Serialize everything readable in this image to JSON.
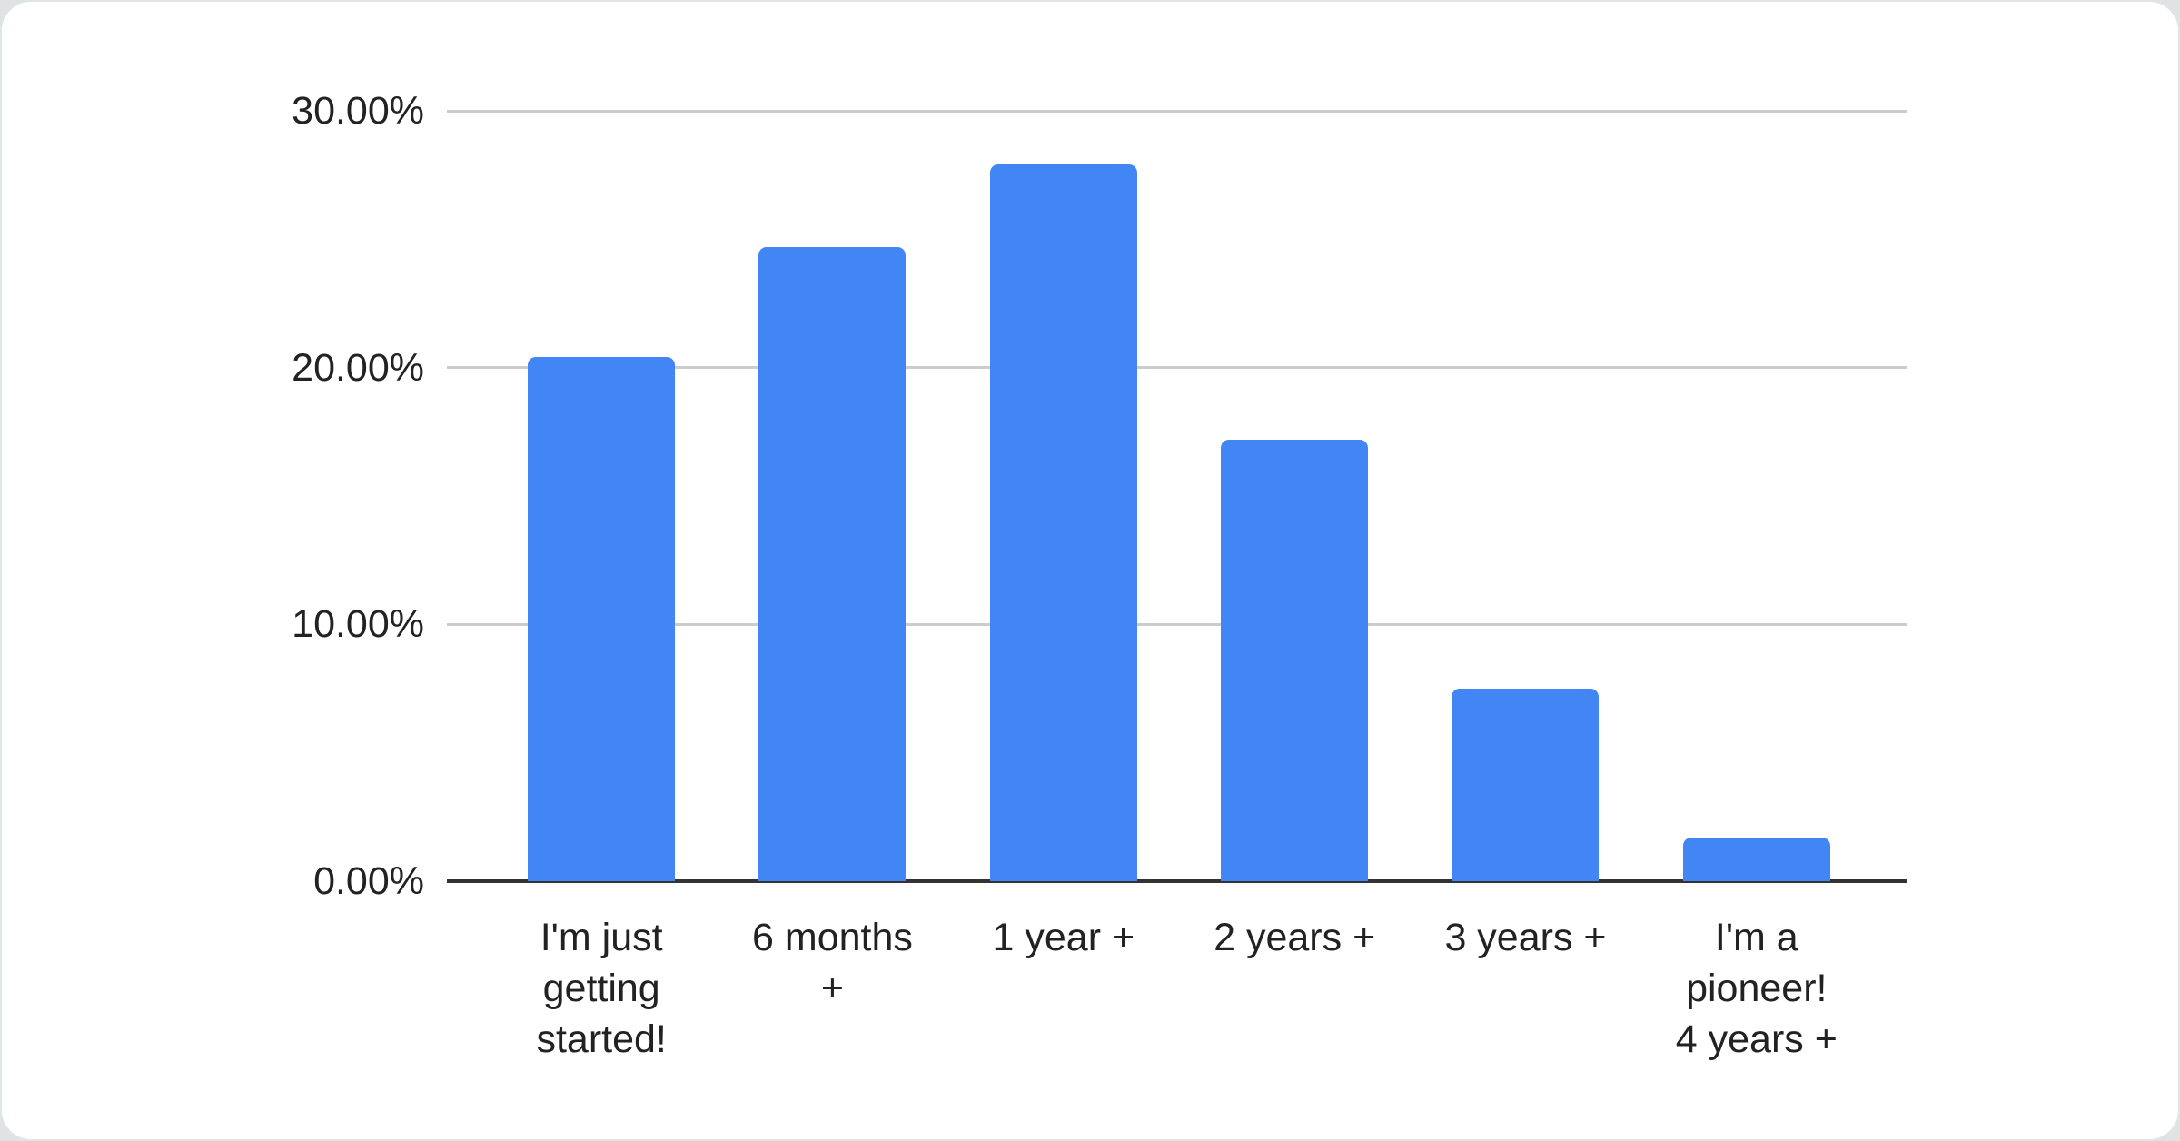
{
  "colors": {
    "bar": "#4285f4",
    "gridline": "#cccccc",
    "axis_line": "#333333",
    "text": "#222222",
    "card_bg": "#ffffff",
    "page_bg": "#dfe3e4"
  },
  "chart_data": {
    "type": "bar",
    "categories": [
      "I'm just getting started!",
      "6 months +",
      "1 year +",
      "2 years +",
      "3 years +",
      "I'm a pioneer! 4 years +"
    ],
    "x_tick_labels": [
      "I'm just\ngetting\nstarted!",
      "6 months\n+",
      "1 year +",
      "2 years +",
      "3 years +",
      "I'm a\npioneer!\n4 years +"
    ],
    "values": [
      20.4,
      24.7,
      27.9,
      17.2,
      7.5,
      1.7
    ],
    "unit": "%",
    "ylim": [
      0,
      30
    ],
    "yticks": [
      {
        "value": 0,
        "label": "0.00%"
      },
      {
        "value": 10,
        "label": "10.00%"
      },
      {
        "value": 20,
        "label": "20.00%"
      },
      {
        "value": 30,
        "label": "30.00%"
      }
    ],
    "grid": true,
    "legend": "none"
  }
}
